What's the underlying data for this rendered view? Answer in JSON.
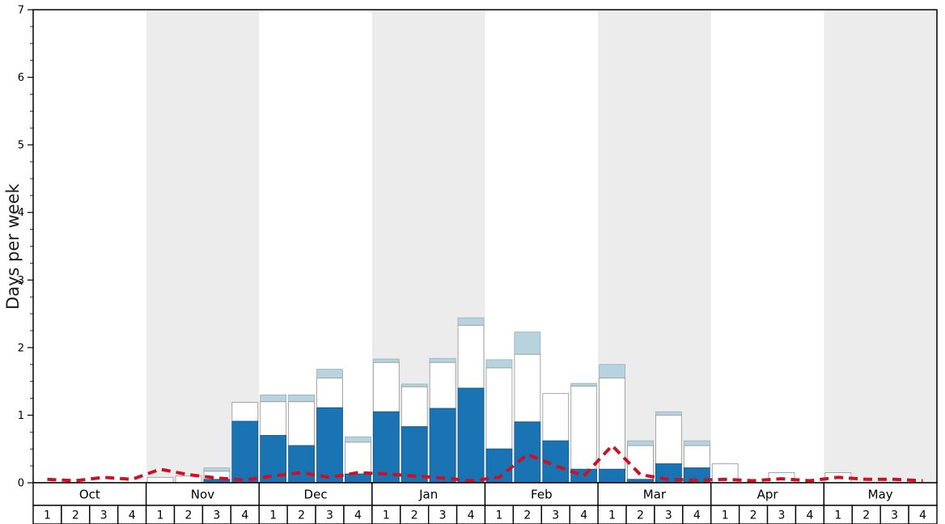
{
  "y_axis": {
    "label": "Days per week",
    "tick_labels": [
      "0",
      "1",
      "2",
      "3",
      "4",
      "5",
      "6",
      "7"
    ],
    "min": 0,
    "max": 7
  },
  "x_axis": {
    "months": [
      {
        "label": "Oct",
        "weeks": [
          "1",
          "2",
          "3",
          "4"
        ]
      },
      {
        "label": "Nov",
        "weeks": [
          "1",
          "2",
          "3",
          "4"
        ]
      },
      {
        "label": "Dec",
        "weeks": [
          "1",
          "2",
          "3",
          "4"
        ]
      },
      {
        "label": "Jan",
        "weeks": [
          "1",
          "2",
          "3",
          "4"
        ]
      },
      {
        "label": "Feb",
        "weeks": [
          "1",
          "2",
          "3",
          "4"
        ]
      },
      {
        "label": "Mar",
        "weeks": [
          "1",
          "2",
          "3",
          "4"
        ]
      },
      {
        "label": "Apr",
        "weeks": [
          "1",
          "2",
          "3",
          "4"
        ]
      },
      {
        "label": "May",
        "weeks": [
          "1",
          "2",
          "3",
          "4"
        ]
      }
    ]
  },
  "colors": {
    "bar_dark_blue": "#1a73b2",
    "bar_white": "#ffffff",
    "bar_light_blue": "#b7d3de",
    "bar_border": "#9c9c9c",
    "cap_border": "#96b4bf",
    "blue_border": "#14598a",
    "line_red": "#cc1126",
    "band_gray": "#ececec",
    "axis_black": "#000000"
  },
  "chart_data": {
    "type": "bar",
    "title": "",
    "xlabel": "",
    "ylabel": "Days per week",
    "ylim": [
      0,
      7
    ],
    "grid": false,
    "legend": "none",
    "x_structure": "8 months x 4 weeks, alternating white/gray month background bands",
    "stacking": "bar series values are cumulative stack tops in days-per-week; line series is overlaid dashed line",
    "categories": [
      "Oct-1",
      "Oct-2",
      "Oct-3",
      "Oct-4",
      "Nov-1",
      "Nov-2",
      "Nov-3",
      "Nov-4",
      "Dec-1",
      "Dec-2",
      "Dec-3",
      "Dec-4",
      "Jan-1",
      "Jan-2",
      "Jan-3",
      "Jan-4",
      "Feb-1",
      "Feb-2",
      "Feb-3",
      "Feb-4",
      "Mar-1",
      "Mar-2",
      "Mar-3",
      "Mar-4",
      "Apr-1",
      "Apr-2",
      "Apr-3",
      "Apr-4",
      "May-1",
      "May-2",
      "May-3",
      "May-4"
    ],
    "series": [
      {
        "name": "dark-blue-bar-top",
        "color": "#1a73b2",
        "values": [
          0,
          0,
          0,
          0,
          0,
          0,
          0.05,
          0.91,
          0.7,
          0.55,
          1.11,
          0.13,
          1.05,
          0.83,
          1.1,
          1.4,
          0.5,
          0.9,
          0.62,
          0.2,
          0.2,
          0.05,
          0.28,
          0.22,
          0,
          0,
          0,
          0,
          0,
          0,
          0,
          0
        ]
      },
      {
        "name": "white-bar-top",
        "color": "#ffffff",
        "values": [
          0,
          0,
          0,
          0,
          0.08,
          0.1,
          0.17,
          1.19,
          1.2,
          1.2,
          1.55,
          0.6,
          1.78,
          1.42,
          1.78,
          2.33,
          1.7,
          1.9,
          1.32,
          1.43,
          1.55,
          0.55,
          1.0,
          0.55,
          0.28,
          0,
          0.15,
          0,
          0.15,
          0,
          0,
          0
        ]
      },
      {
        "name": "light-blue-cap-top",
        "color": "#b7d3de",
        "values": [
          0,
          0,
          0,
          0,
          0.08,
          0.1,
          0.22,
          1.19,
          1.3,
          1.3,
          1.68,
          0.68,
          1.83,
          1.46,
          1.84,
          2.44,
          1.82,
          2.23,
          1.32,
          1.47,
          1.75,
          0.62,
          1.05,
          0.62,
          0.28,
          0,
          0.15,
          0,
          0.15,
          0,
          0,
          0
        ]
      },
      {
        "name": "red-dashed-line",
        "color": "#cc1126",
        "style": "dashed",
        "values": [
          0.05,
          0.03,
          0.08,
          0.05,
          0.2,
          0.12,
          0.07,
          0.04,
          0.1,
          0.15,
          0.08,
          0.15,
          0.13,
          0.1,
          0.07,
          0.03,
          0.08,
          0.42,
          0.25,
          0.1,
          0.55,
          0.12,
          0.05,
          0.04,
          0.05,
          0.03,
          0.06,
          0.03,
          0.08,
          0.05,
          0.05,
          0.03
        ]
      }
    ]
  }
}
